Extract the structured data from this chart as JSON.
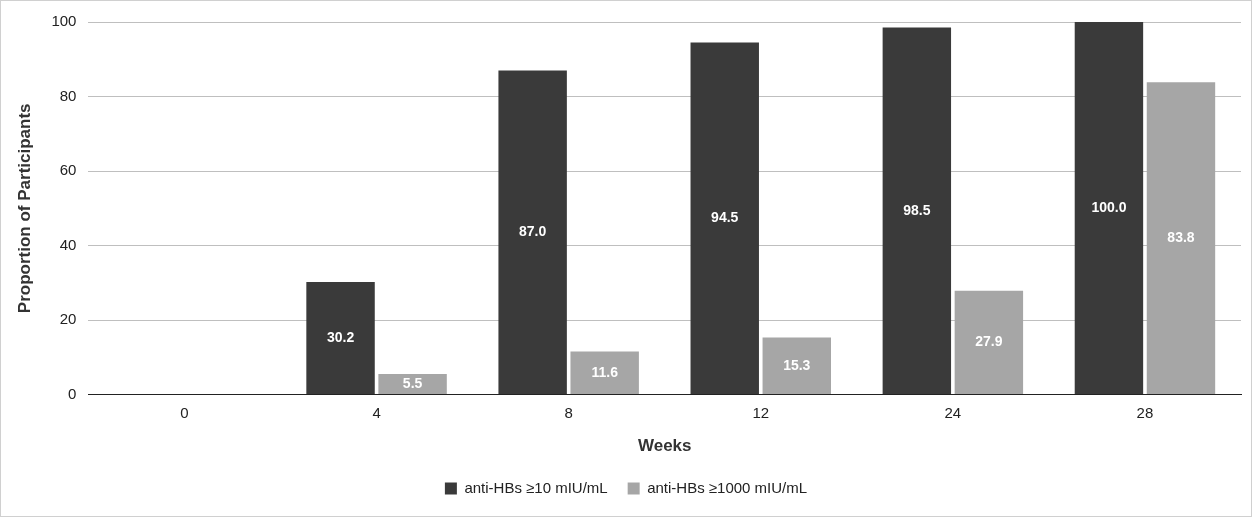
{
  "chart_data": {
    "type": "bar",
    "xlabel": "Weeks",
    "ylabel": "Proportion of Participants",
    "categories": [
      "0",
      "4",
      "8",
      "12",
      "24",
      "28"
    ],
    "ylim": [
      0,
      100
    ],
    "yticks": [
      0,
      20,
      40,
      60,
      80,
      100
    ],
    "grid": "y",
    "legend": "bottom",
    "series": [
      {
        "name": "anti-HBs ≥10 mIU/mL",
        "color": "#3a3a3a",
        "values": [
          null,
          30.2,
          87.0,
          94.5,
          98.5,
          100.0
        ],
        "value_labels": [
          null,
          "30.2",
          "87.0",
          "94.5",
          "98.5",
          "100.0"
        ]
      },
      {
        "name": "anti-HBs ≥1000 mIU/mL",
        "color": "#a6a6a6",
        "values": [
          null,
          5.5,
          11.6,
          15.3,
          27.9,
          83.8
        ],
        "value_labels": [
          null,
          "5.5",
          "11.6",
          "15.3",
          "27.9",
          "83.8"
        ]
      }
    ]
  }
}
